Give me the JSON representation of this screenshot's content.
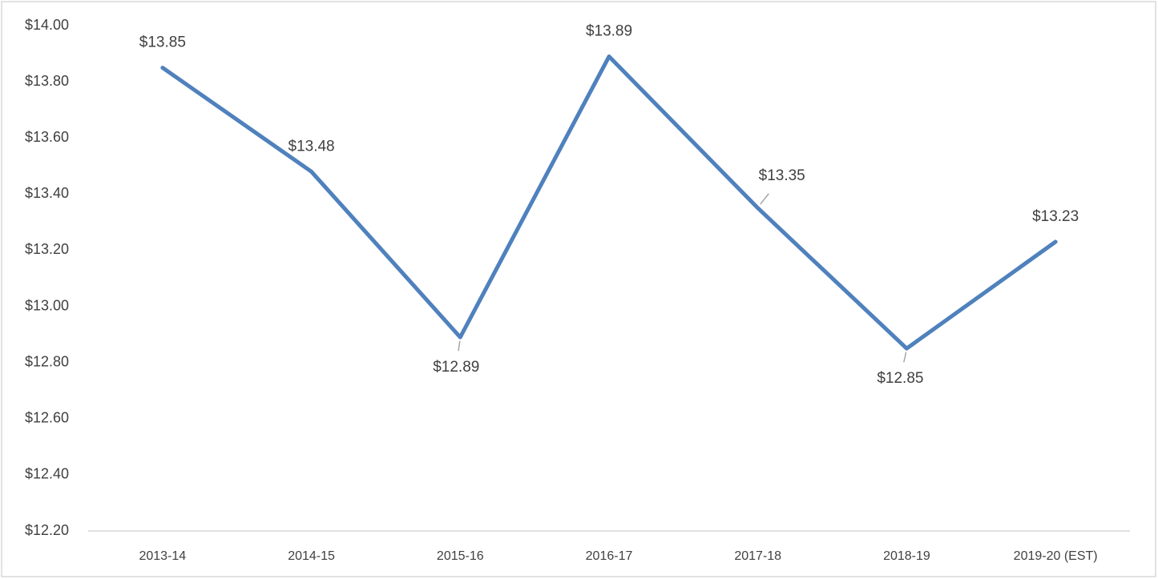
{
  "chart_data": {
    "type": "line",
    "categories": [
      "2013-14",
      "2014-15",
      "2015-16",
      "2016-17",
      "2017-18",
      "2018-19",
      "2019-20 (EST)"
    ],
    "series": [
      {
        "color": "#4f81bd",
        "values": [
          13.85,
          13.48,
          12.89,
          13.89,
          13.35,
          12.85,
          13.23
        ],
        "value_labels": [
          "$13.85",
          "$13.48",
          "$12.89",
          "$13.89",
          "$13.35",
          "$12.85",
          "$13.23"
        ]
      }
    ],
    "ylim": [
      12.2,
      14.0
    ],
    "yticks": [
      {
        "value": 12.2,
        "label": "$12.20"
      },
      {
        "value": 12.4,
        "label": "$12.40"
      },
      {
        "value": 12.6,
        "label": "$12.60"
      },
      {
        "value": 12.8,
        "label": "$12.80"
      },
      {
        "value": 13.0,
        "label": "$13.00"
      },
      {
        "value": 13.2,
        "label": "$13.20"
      },
      {
        "value": 13.4,
        "label": "$13.40"
      },
      {
        "value": 13.6,
        "label": "$13.60"
      },
      {
        "value": 13.8,
        "label": "$13.80"
      },
      {
        "value": 14.0,
        "label": "$14.00"
      }
    ],
    "grid": false
  }
}
